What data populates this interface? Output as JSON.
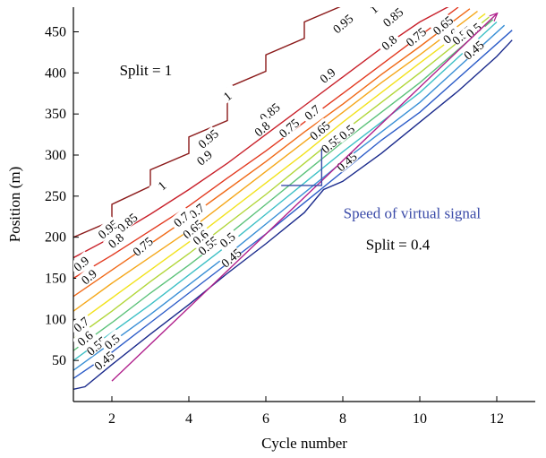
{
  "chart_data": {
    "type": "line",
    "title": "",
    "xlabel": "Cycle number",
    "ylabel": "Position (m)",
    "xlim": [
      1,
      13
    ],
    "ylim": [
      0,
      480
    ],
    "xticks": [
      2,
      4,
      6,
      8,
      10,
      12
    ],
    "yticks": [
      50,
      100,
      150,
      200,
      250,
      300,
      350,
      400,
      450
    ],
    "series": [
      {
        "name": "1",
        "color": "#8b1a1a",
        "label_positions": [
          [
            3.3,
            263
          ],
          [
            5.0,
            372
          ],
          [
            8.8,
            478
          ]
        ],
        "points": [
          [
            1,
            200
          ],
          [
            2,
            220
          ],
          [
            2,
            240
          ],
          [
            3,
            262
          ],
          [
            3,
            282
          ],
          [
            4,
            302
          ],
          [
            4,
            322
          ],
          [
            5,
            342
          ],
          [
            5,
            382
          ],
          [
            6,
            402
          ],
          [
            6,
            422
          ],
          [
            7,
            442
          ],
          [
            7,
            462
          ],
          [
            8,
            482
          ]
        ]
      },
      {
        "name": "0.95",
        "color": "#c8202a",
        "label_positions": [
          [
            1.9,
            210
          ],
          [
            4.5,
            320
          ],
          [
            8.0,
            460
          ]
        ],
        "points": [
          [
            1,
            175
          ],
          [
            2,
            200
          ],
          [
            3,
            228
          ],
          [
            4,
            258
          ],
          [
            5,
            290
          ],
          [
            6,
            325
          ],
          [
            7,
            360
          ],
          [
            8,
            395
          ],
          [
            9,
            430
          ],
          [
            10,
            462
          ],
          [
            10.8,
            482
          ]
        ]
      },
      {
        "name": "0.9",
        "color": "#e23a20",
        "label_positions": [
          [
            1.4,
            152
          ],
          [
            4.4,
            297
          ],
          [
            7.6,
            397
          ],
          [
            1.2,
            168
          ]
        ],
        "points": [
          [
            1,
            150
          ],
          [
            2,
            178
          ],
          [
            3,
            208
          ],
          [
            4,
            238
          ],
          [
            5,
            272
          ],
          [
            6,
            305
          ],
          [
            7,
            340
          ],
          [
            8,
            375
          ],
          [
            9,
            410
          ],
          [
            10,
            445
          ],
          [
            11,
            480
          ]
        ]
      },
      {
        "name": "0.85",
        "color": "#f06a18",
        "label_positions": [
          [
            2.4,
            218
          ],
          [
            6.1,
            352
          ],
          [
            9.3,
            468
          ]
        ],
        "points": [
          [
            1,
            128
          ],
          [
            2,
            160
          ],
          [
            3,
            192
          ],
          [
            4,
            224
          ],
          [
            5,
            258
          ],
          [
            6,
            292
          ],
          [
            7,
            328
          ],
          [
            8,
            362
          ],
          [
            9,
            398
          ],
          [
            10,
            432
          ],
          [
            11.3,
            478
          ]
        ]
      },
      {
        "name": "0.8",
        "color": "#f5a81c",
        "label_positions": [
          [
            2.1,
            196
          ],
          [
            5.9,
            332
          ],
          [
            9.2,
            437
          ]
        ],
        "points": [
          [
            1,
            110
          ],
          [
            2,
            144
          ],
          [
            3,
            176
          ],
          [
            4,
            208
          ],
          [
            5,
            244
          ],
          [
            6,
            280
          ],
          [
            7,
            316
          ],
          [
            8,
            352
          ],
          [
            9,
            388
          ],
          [
            10,
            422
          ],
          [
            11.5,
            475
          ]
        ]
      },
      {
        "name": "0.75",
        "color": "#f2e21e",
        "label_positions": [
          [
            2.8,
            189
          ],
          [
            6.6,
            333
          ],
          [
            9.9,
            444
          ]
        ],
        "points": [
          [
            1,
            92
          ],
          [
            2,
            126
          ],
          [
            3,
            160
          ],
          [
            4,
            194
          ],
          [
            5,
            230
          ],
          [
            6,
            266
          ],
          [
            7,
            302
          ],
          [
            8,
            340
          ],
          [
            9,
            376
          ],
          [
            10,
            412
          ],
          [
            11.7,
            472
          ]
        ]
      },
      {
        "name": "0.7",
        "color": "#b2d63a",
        "label_positions": [
          [
            1.2,
            94
          ],
          [
            4.2,
            232
          ],
          [
            7.2,
            352
          ],
          [
            3.8,
            222
          ]
        ],
        "points": [
          [
            1,
            76
          ],
          [
            2,
            110
          ],
          [
            3,
            146
          ],
          [
            4,
            180
          ],
          [
            5,
            216
          ],
          [
            6,
            252
          ],
          [
            7,
            290
          ],
          [
            8,
            328
          ],
          [
            9,
            364
          ],
          [
            10,
            400
          ],
          [
            11.8,
            468
          ]
        ]
      },
      {
        "name": "0.65",
        "color": "#5cc27a",
        "label_positions": [
          [
            4.1,
            210
          ],
          [
            7.4,
            330
          ],
          [
            10.6,
            458
          ]
        ],
        "points": [
          [
            1,
            62
          ],
          [
            2,
            96
          ],
          [
            3,
            132
          ],
          [
            4,
            166
          ],
          [
            5,
            202
          ],
          [
            6,
            240
          ],
          [
            7,
            278
          ],
          [
            8,
            316
          ],
          [
            9,
            352
          ],
          [
            10,
            388
          ],
          [
            11.9,
            465
          ]
        ]
      },
      {
        "name": "0.6",
        "color": "#3ec0c6",
        "label_positions": [
          [
            1.3,
            77
          ],
          [
            4.3,
            200
          ],
          [
            10.8,
            445
          ]
        ],
        "points": [
          [
            1,
            50
          ],
          [
            2,
            84
          ],
          [
            3,
            118
          ],
          [
            4,
            154
          ],
          [
            5,
            190
          ],
          [
            6,
            228
          ],
          [
            7,
            266
          ],
          [
            8,
            304
          ],
          [
            9,
            340
          ],
          [
            10,
            376
          ],
          [
            12,
            462
          ]
        ]
      },
      {
        "name": "0.55",
        "color": "#3a90d6",
        "label_positions": [
          [
            1.6,
            68
          ],
          [
            4.5,
            190
          ],
          [
            7.7,
            314
          ],
          [
            11.1,
            446
          ]
        ],
        "points": [
          [
            1,
            38
          ],
          [
            2,
            72
          ],
          [
            3,
            106
          ],
          [
            4,
            142
          ],
          [
            5,
            178
          ],
          [
            6,
            216
          ],
          [
            7,
            254
          ],
          [
            8,
            292
          ],
          [
            9,
            328
          ],
          [
            10,
            364
          ],
          [
            12.2,
            458
          ]
        ]
      },
      {
        "name": "0.5",
        "color": "#2c5cc8",
        "label_positions": [
          [
            2.0,
            73
          ],
          [
            5.0,
            197
          ],
          [
            8.1,
            328
          ],
          [
            11.4,
            452
          ]
        ],
        "points": [
          [
            1,
            28
          ],
          [
            2,
            60
          ],
          [
            3,
            96
          ],
          [
            4,
            132
          ],
          [
            5,
            168
          ],
          [
            6,
            204
          ],
          [
            7,
            242
          ],
          [
            8,
            280
          ],
          [
            9,
            318
          ],
          [
            10,
            352
          ],
          [
            12.4,
            452
          ]
        ]
      },
      {
        "name": "0.45",
        "color": "#1a2a8c",
        "label_positions": [
          [
            1.8,
            50
          ],
          [
            5.1,
            175
          ],
          [
            8.1,
            292
          ],
          [
            11.4,
            428
          ]
        ],
        "points": [
          [
            1,
            15
          ],
          [
            1.3,
            18
          ],
          [
            2,
            45
          ],
          [
            3,
            82
          ],
          [
            4,
            118
          ],
          [
            5,
            156
          ],
          [
            6,
            192
          ],
          [
            7,
            230
          ],
          [
            7.5,
            258
          ],
          [
            8,
            268
          ],
          [
            9,
            302
          ],
          [
            10,
            340
          ],
          [
            11,
            378
          ],
          [
            12,
            420
          ],
          [
            12.4,
            440
          ]
        ]
      }
    ],
    "virtual_signal": {
      "color": "#b0208c",
      "x": [
        2,
        12
      ],
      "y": [
        25,
        472
      ]
    },
    "annotations": {
      "split1": {
        "text": "Split = 1",
        "x": 2.2,
        "y": 397
      },
      "split04": {
        "text": "Split = 0.4",
        "x": 8.6,
        "y": 185
      },
      "speed": {
        "text": "Speed of virtual signal",
        "x": 9.8,
        "y": 223,
        "color": "#3a4aa8"
      }
    },
    "speed_bracket": {
      "x0": 6.4,
      "x1": 7.45,
      "y_low": 263,
      "y_high": 308
    }
  }
}
